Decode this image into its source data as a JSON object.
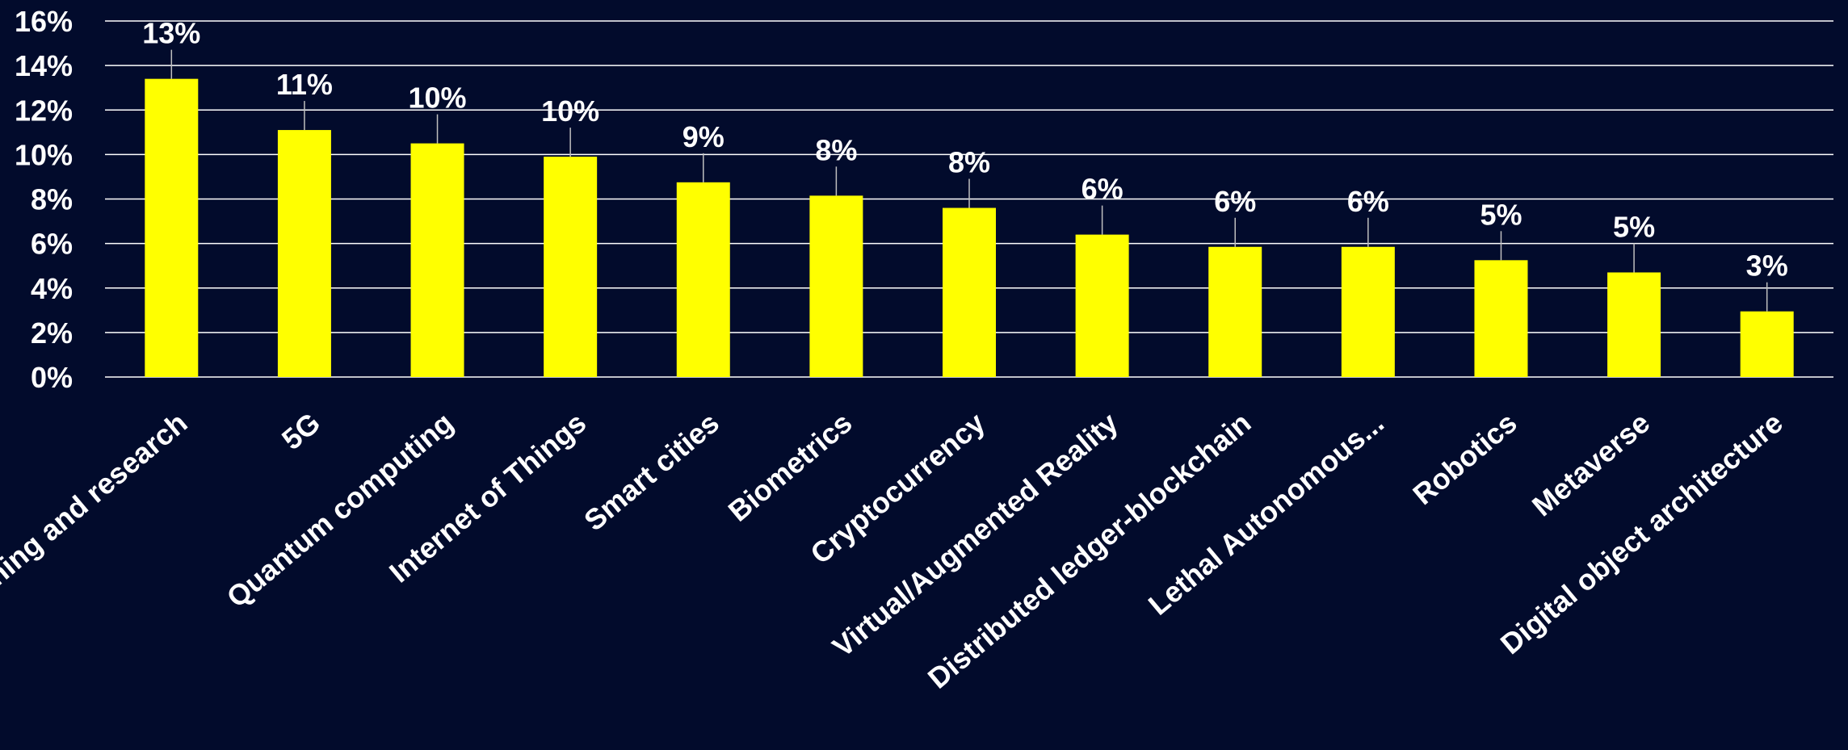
{
  "chart_data": {
    "type": "bar",
    "categories": [
      "Machine learning and research",
      "5G",
      "Quantum computing",
      "Internet of Things",
      "Smart cities",
      "Biometrics",
      "Cryptocurrency",
      "Virtual/Augmented Reality",
      "Distributed ledger-blockchain",
      "Lethal Autonomous...",
      "Robotics",
      "Metaverse",
      "Digital object architecture"
    ],
    "values": [
      13.4,
      11.1,
      10.5,
      9.9,
      8.75,
      8.15,
      7.6,
      6.4,
      5.85,
      5.85,
      5.25,
      4.7,
      2.95
    ],
    "data_labels": [
      "13%",
      "11%",
      "10%",
      "10%",
      "9%",
      "8%",
      "8%",
      "6%",
      "6%",
      "6%",
      "5%",
      "5%",
      "3%"
    ],
    "ylim": [
      0,
      16
    ],
    "yticks": [
      "0%",
      "2%",
      "4%",
      "6%",
      "8%",
      "10%",
      "12%",
      "14%",
      "16%"
    ],
    "ytick_values": [
      0,
      2,
      4,
      6,
      8,
      10,
      12,
      14,
      16
    ],
    "title": "",
    "xlabel": "",
    "ylabel": "",
    "grid": true,
    "legend": "none",
    "colors": {
      "background": "#020B2C",
      "bar": "#FFFF00",
      "grid": "#FFFFFF",
      "text": "#FFFFFF",
      "leader": "#BFBFBF"
    }
  }
}
